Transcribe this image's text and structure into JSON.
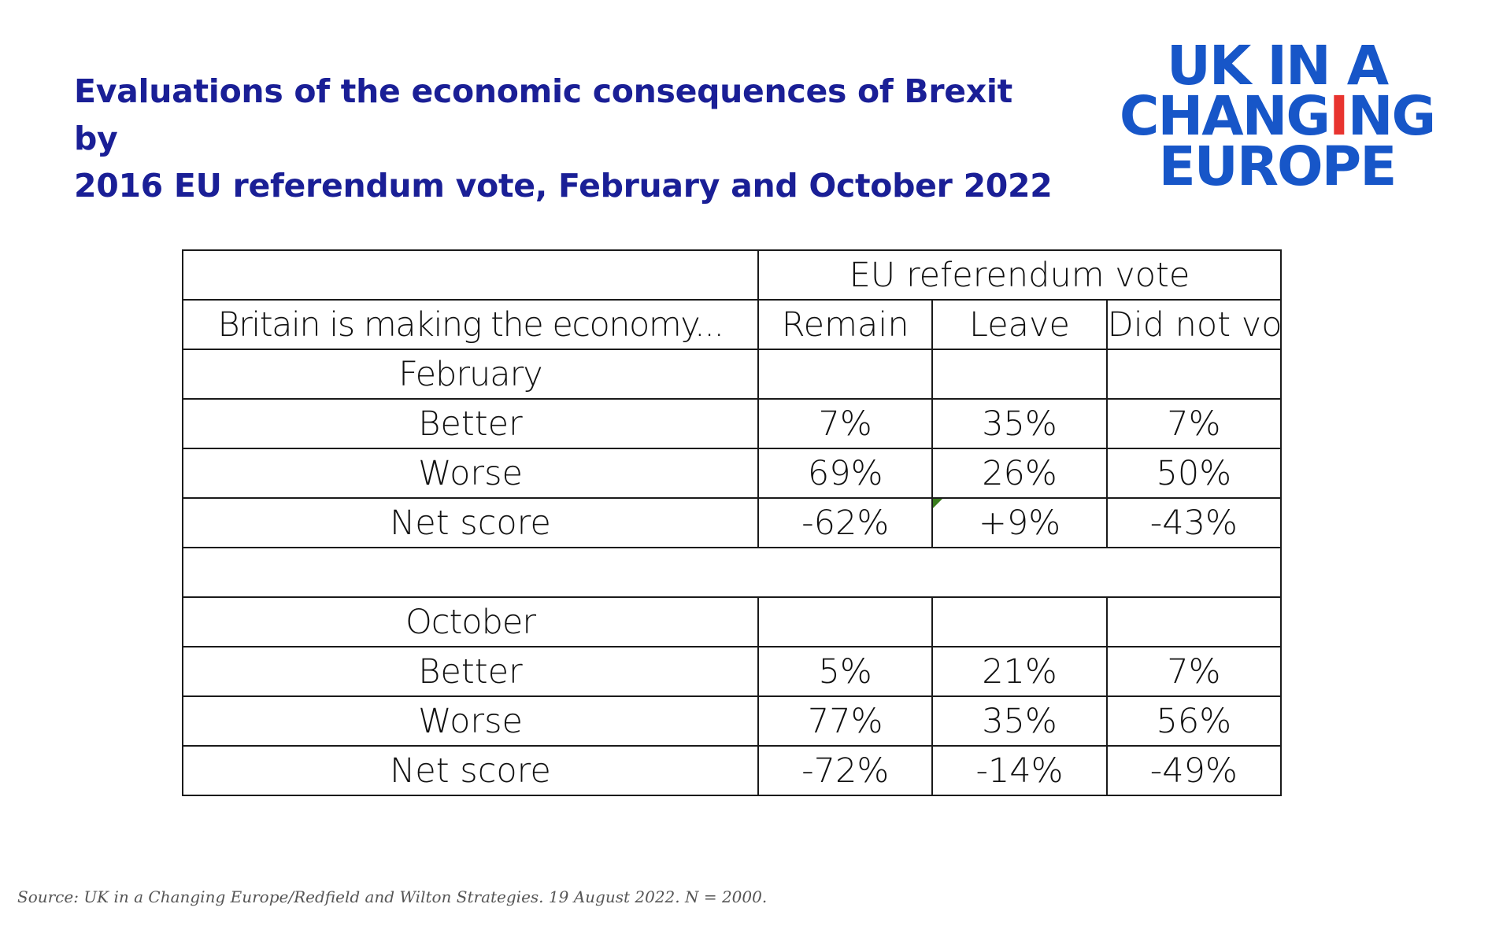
{
  "title": {
    "line1": "Evaluations of the economic consequences of Brexit by",
    "line2": "2016 EU referendum vote, February and October 2022"
  },
  "logo": {
    "line1": "UK IN A",
    "line2_part1": "CH",
    "line2_accent1": "A",
    "line2_part2": "NG",
    "line2_accent2": "I",
    "line2_part3": "NG",
    "line3": "EUROPE",
    "colors": {
      "primary": "#1756c8",
      "accent": "#e8342f"
    }
  },
  "colors": {
    "title": "#1a1f96",
    "negative": "#e31b1b",
    "positive": "#4e8a2e",
    "text": "#111111"
  },
  "chart_data": {
    "type": "table",
    "group_header": "EU referendum vote",
    "row_header": "Britain is making the economy...",
    "columns": [
      "Remain",
      "Leave",
      "Did not vote"
    ],
    "sections": [
      {
        "label": "February",
        "rows": [
          {
            "label": "Better",
            "values": [
              "7%",
              "35%",
              "7%"
            ]
          },
          {
            "label": "Worse",
            "values": [
              "69%",
              "26%",
              "50%"
            ]
          },
          {
            "label": "Net score",
            "values": [
              "-62%",
              "+9%",
              "-43%"
            ]
          }
        ]
      },
      {
        "label": "October",
        "rows": [
          {
            "label": "Better",
            "values": [
              "5%",
              "21%",
              "7%"
            ]
          },
          {
            "label": "Worse",
            "values": [
              "77%",
              "35%",
              "56%"
            ]
          },
          {
            "label": "Net score",
            "values": [
              "-72%",
              "-14%",
              "-49%"
            ]
          }
        ]
      }
    ]
  },
  "source": "Source: UK in a Changing Europe/Redfield and Wilton Strategies. 19 August 2022. N = 2000."
}
